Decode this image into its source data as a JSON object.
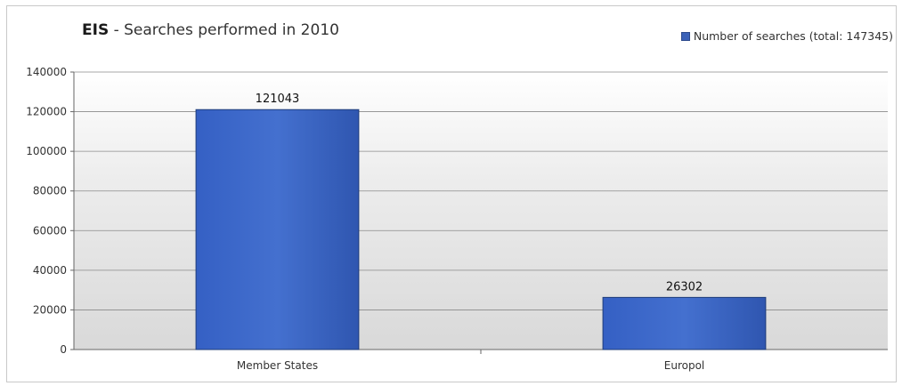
{
  "chart_data": {
    "type": "bar",
    "title_brand": "EIS",
    "title_rest": " - Searches performed in 2010",
    "categories": [
      "Member States",
      "Europol"
    ],
    "series": [
      {
        "name": "Number of searches (total: 147345)",
        "values": [
          121043,
          26302
        ],
        "data_labels": [
          "121043",
          "26302"
        ]
      }
    ],
    "y_ticks": [
      0,
      20000,
      40000,
      60000,
      80000,
      100000,
      120000,
      140000
    ],
    "ylim": [
      0,
      140000
    ],
    "grid": true,
    "legend_position": "top-right",
    "bar_color": "#3b62b8"
  }
}
